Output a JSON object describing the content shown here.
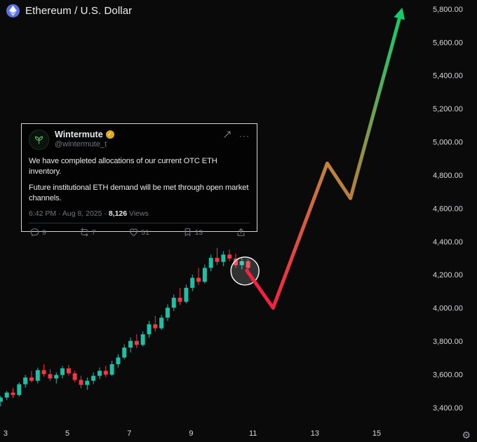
{
  "header": {
    "title": "Ethereum / U.S. Dollar"
  },
  "tweet": {
    "name": "Wintermute",
    "handle": "@wintermute_t",
    "body_1": "We have completed allocations of our current OTC ETH inventory.",
    "body_2": "Future institutional ETH demand will be met through open market channels.",
    "time": "6:42 PM · Aug 8, 2025 ·",
    "views_count": "8,126",
    "views_label": "Views",
    "actions": {
      "reply": "9",
      "repost": "7",
      "like": "51",
      "bookmark": "13"
    },
    "more_icon": "···"
  },
  "bottom_bar": {
    "gear_icon": "⚙"
  },
  "chart_data": {
    "type": "candlestick",
    "title": "Ethereum / U.S. Dollar",
    "x_unit": "day of month (August)",
    "x_range": [
      2.82,
      16.7
    ],
    "y_range": [
      3307,
      5859
    ],
    "x_ticks": [
      {
        "value": 3,
        "label": "3"
      },
      {
        "value": 5,
        "label": "5"
      },
      {
        "value": 7,
        "label": "7"
      },
      {
        "value": 9,
        "label": "9"
      },
      {
        "value": 11,
        "label": "11"
      },
      {
        "value": 13,
        "label": "13"
      },
      {
        "value": 15,
        "label": "15"
      }
    ],
    "y_ticks": [
      {
        "value": 5800,
        "label": "5,800.00"
      },
      {
        "value": 5600,
        "label": "5,600.00"
      },
      {
        "value": 5400,
        "label": "5,400.00"
      },
      {
        "value": 5200,
        "label": "5,200.00"
      },
      {
        "value": 5000,
        "label": "5,000.00"
      },
      {
        "value": 4800,
        "label": "4,800.00"
      },
      {
        "value": 4600,
        "label": "4,600.00"
      },
      {
        "value": 4400,
        "label": "4,400.00"
      },
      {
        "value": 4200,
        "label": "4,200.00"
      },
      {
        "value": 4000,
        "label": "4,000.00"
      },
      {
        "value": 3800,
        "label": "3,800.00"
      },
      {
        "value": 3600,
        "label": "3,600.00"
      },
      {
        "value": 3400,
        "label": "3,400.00"
      }
    ],
    "candles_format": [
      "day",
      "open",
      "high",
      "low",
      "close"
    ],
    "candles": [
      [
        2.84,
        3440,
        3475,
        3412,
        3465
      ],
      [
        3.04,
        3465,
        3505,
        3450,
        3495
      ],
      [
        3.24,
        3495,
        3522,
        3462,
        3480
      ],
      [
        3.44,
        3480,
        3556,
        3470,
        3545
      ],
      [
        3.64,
        3545,
        3602,
        3525,
        3586
      ],
      [
        3.84,
        3586,
        3625,
        3555,
        3566
      ],
      [
        4.04,
        3566,
        3645,
        3550,
        3630
      ],
      [
        4.24,
        3630,
        3666,
        3590,
        3606
      ],
      [
        4.44,
        3606,
        3636,
        3565,
        3580
      ],
      [
        4.64,
        3580,
        3616,
        3550,
        3601
      ],
      [
        4.84,
        3601,
        3656,
        3580,
        3641
      ],
      [
        5.04,
        3641,
        3661,
        3596,
        3611
      ],
      [
        5.24,
        3611,
        3626,
        3556,
        3571
      ],
      [
        5.44,
        3571,
        3596,
        3520,
        3541
      ],
      [
        5.64,
        3541,
        3586,
        3512,
        3566
      ],
      [
        5.84,
        3566,
        3616,
        3546,
        3596
      ],
      [
        6.04,
        3596,
        3646,
        3576,
        3626
      ],
      [
        6.24,
        3626,
        3656,
        3588,
        3603
      ],
      [
        6.44,
        3603,
        3686,
        3595,
        3666
      ],
      [
        6.64,
        3666,
        3726,
        3646,
        3706
      ],
      [
        6.84,
        3706,
        3786,
        3696,
        3766
      ],
      [
        7.04,
        3766,
        3826,
        3736,
        3806
      ],
      [
        7.24,
        3806,
        3846,
        3762,
        3782
      ],
      [
        7.44,
        3782,
        3863,
        3772,
        3846
      ],
      [
        7.64,
        3846,
        3926,
        3826,
        3906
      ],
      [
        7.84,
        3906,
        3956,
        3862,
        3882
      ],
      [
        8.04,
        3882,
        3963,
        3872,
        3946
      ],
      [
        8.24,
        3946,
        4026,
        3926,
        4006
      ],
      [
        8.44,
        4006,
        4086,
        3986,
        4066
      ],
      [
        8.64,
        4066,
        4126,
        4022,
        4042
      ],
      [
        8.84,
        4042,
        4146,
        4032,
        4126
      ],
      [
        9.04,
        4126,
        4206,
        4106,
        4186
      ],
      [
        9.24,
        4186,
        4246,
        4142,
        4162
      ],
      [
        9.44,
        4162,
        4266,
        4152,
        4246
      ],
      [
        9.64,
        4246,
        4326,
        4226,
        4306
      ],
      [
        9.84,
        4306,
        4366,
        4262,
        4282
      ],
      [
        10.04,
        4282,
        4346,
        4256,
        4326
      ],
      [
        10.24,
        4326,
        4356,
        4286,
        4302
      ],
      [
        10.44,
        4302,
        4332,
        4246,
        4262
      ],
      [
        10.64,
        4262,
        4306,
        4236,
        4286
      ],
      [
        10.84,
        4286,
        4300,
        4228,
        4246
      ]
    ],
    "colors": {
      "up": "#1fbfa6",
      "down": "#f23645",
      "axis_text": "#d6d8dc",
      "background": "#0a0a0a"
    },
    "highlight_circle": {
      "day": 10.74,
      "price": 4227,
      "radius_px": 20
    },
    "trend_arrow": {
      "comment": "hand-drawn projection: drop to ~4000 then rally to ~4875, pullback ~4665, breakout toward ~5760",
      "points": [
        [
          10.8,
          4230
        ],
        [
          11.65,
          4005
        ],
        [
          13.4,
          4875
        ],
        [
          14.15,
          4665
        ],
        [
          15.75,
          5760
        ]
      ],
      "segment_colors": [
        [
          "#f6213f",
          "#f6213f"
        ],
        [
          "#f6213f",
          "#c08440"
        ],
        [
          "#c08440",
          "#b97e3c"
        ],
        [
          "#b97e3c",
          "#14cb6b"
        ]
      ],
      "head_color": "#14cb6b",
      "width": 5
    }
  }
}
